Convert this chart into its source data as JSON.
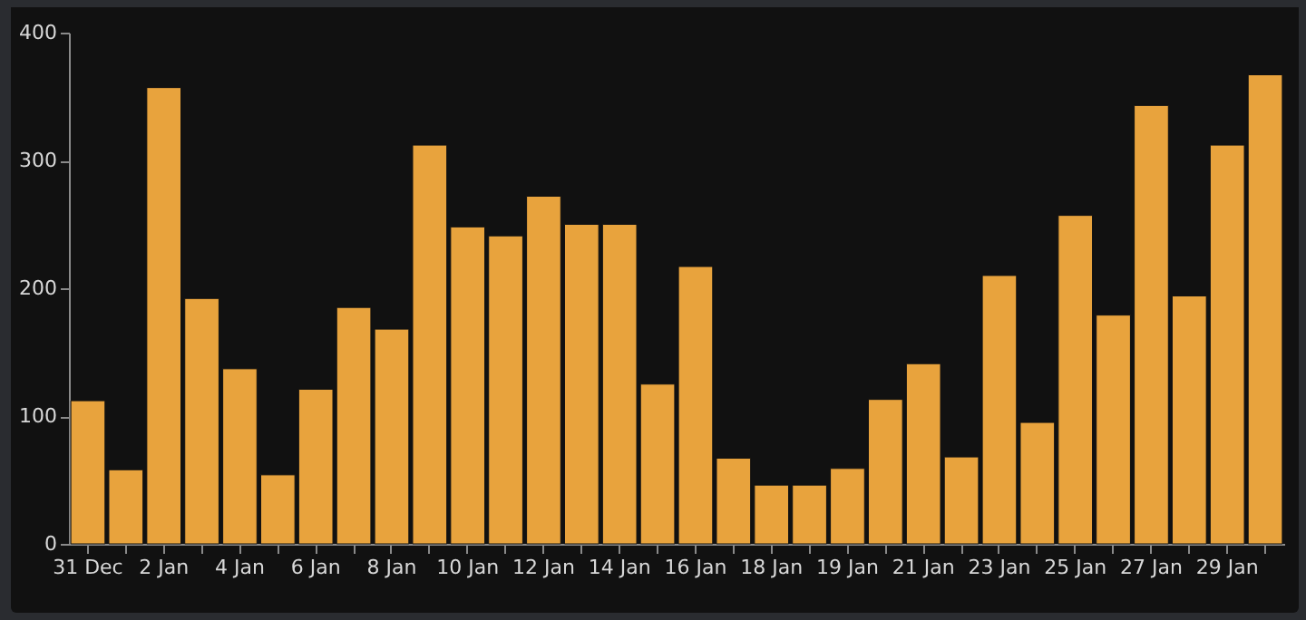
{
  "chart_data": {
    "type": "bar",
    "categories": [
      "31 Dec",
      null,
      "2 Jan",
      null,
      "4 Jan",
      null,
      "6 Jan",
      null,
      "8 Jan",
      null,
      "10 Jan",
      null,
      "12 Jan",
      null,
      "14 Jan",
      null,
      "16 Jan",
      null,
      "18 Jan",
      null,
      "19 Jan",
      null,
      "21 Jan",
      null,
      "23 Jan",
      null,
      "25 Jan",
      null,
      "27 Jan",
      null,
      "29 Jan",
      null
    ],
    "values": [
      112,
      58,
      357,
      192,
      137,
      54,
      121,
      185,
      168,
      312,
      248,
      241,
      272,
      250,
      250,
      125,
      217,
      67,
      46,
      46,
      59,
      113,
      141,
      68,
      210,
      95,
      257,
      179,
      343,
      194,
      312,
      367
    ],
    "color": "#e8a33d",
    "ylim": [
      0,
      400
    ],
    "yticks": [
      0,
      100,
      200,
      300,
      400
    ],
    "grid": false
  }
}
